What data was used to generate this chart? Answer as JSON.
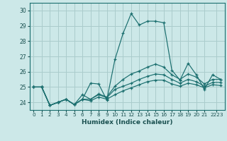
{
  "xlabel": "Humidex (Indice chaleur)",
  "background_color": "#cce8e8",
  "grid_color": "#aacccc",
  "line_color": "#1a6e6e",
  "xlim": [
    -0.5,
    23.5
  ],
  "ylim": [
    23.5,
    30.5
  ],
  "yticks": [
    24,
    25,
    26,
    27,
    28,
    29,
    30
  ],
  "xtick_labels": [
    "0",
    "1",
    "2",
    "3",
    "4",
    "5",
    "6",
    "7",
    "8",
    "9",
    "10",
    "11",
    "12",
    "13",
    "14",
    "15",
    "16",
    "17",
    "18",
    "19",
    "20",
    "21",
    "2223"
  ],
  "xtick_positions": [
    0,
    1,
    2,
    3,
    4,
    5,
    6,
    7,
    8,
    9,
    10,
    11,
    12,
    13,
    14,
    15,
    16,
    17,
    18,
    19,
    20,
    21,
    22.5
  ],
  "series": [
    [
      25.0,
      25.0,
      23.8,
      24.0,
      24.2,
      23.85,
      24.2,
      25.25,
      25.2,
      24.15,
      26.8,
      28.5,
      29.8,
      29.05,
      29.3,
      29.3,
      29.2,
      26.1,
      25.45,
      26.55,
      25.8,
      24.85,
      25.8,
      25.5
    ],
    [
      25.0,
      25.0,
      23.8,
      24.0,
      24.2,
      23.85,
      24.5,
      24.2,
      24.55,
      24.35,
      25.05,
      25.5,
      25.85,
      26.05,
      26.3,
      26.5,
      26.3,
      25.8,
      25.5,
      25.85,
      25.65,
      25.2,
      25.5,
      25.5
    ],
    [
      25.0,
      25.0,
      23.8,
      24.0,
      24.2,
      23.85,
      24.2,
      24.2,
      24.5,
      24.3,
      24.85,
      25.05,
      25.25,
      25.5,
      25.7,
      25.85,
      25.8,
      25.5,
      25.25,
      25.5,
      25.35,
      25.05,
      25.3,
      25.3
    ],
    [
      25.0,
      25.0,
      23.8,
      24.0,
      24.2,
      23.85,
      24.2,
      24.1,
      24.35,
      24.2,
      24.5,
      24.75,
      24.95,
      25.15,
      25.35,
      25.45,
      25.45,
      25.2,
      25.05,
      25.25,
      25.15,
      24.95,
      25.15,
      25.1
    ]
  ]
}
